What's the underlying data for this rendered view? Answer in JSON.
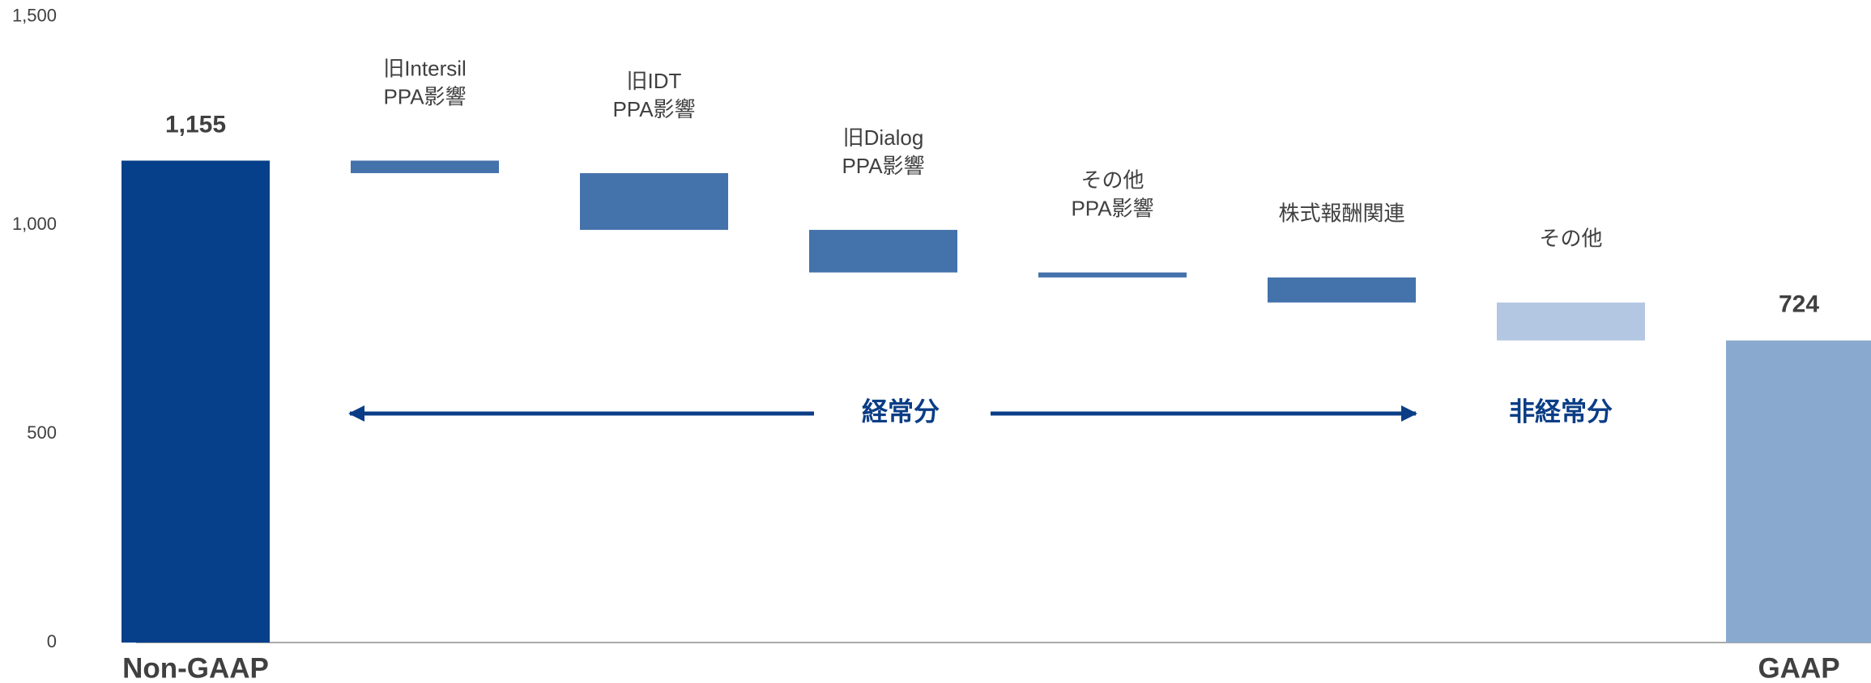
{
  "chart_data": {
    "type": "waterfall",
    "categories": [
      [
        "Non-GAAP"
      ],
      [
        "旧Intersil",
        "PPA影響"
      ],
      [
        "旧IDT",
        "PPA影響"
      ],
      [
        "旧Dialog",
        "PPA影響"
      ],
      [
        "その他",
        "PPA影響"
      ],
      [
        "株式報酬関連"
      ],
      [
        "その他"
      ],
      [
        "GAAP"
      ]
    ],
    "values": [
      1155,
      -30,
      -136,
      -102,
      -12,
      -60,
      -91,
      724
    ],
    "value_labels": [
      "1,155",
      null,
      null,
      null,
      null,
      null,
      null,
      "724"
    ],
    "measure": [
      "total",
      "relative",
      "relative",
      "relative",
      "relative",
      "relative",
      "relative",
      "total"
    ],
    "colors": [
      "#06408a",
      "#4472ab",
      "#4472ab",
      "#4472ab",
      "#4472ab",
      "#4472ab",
      "#b4c7e2",
      "#8aa9cf"
    ],
    "ylim": [
      0,
      1500
    ],
    "yticks": [
      0,
      500,
      {
        "value": 1000,
        "label": "1,000"
      },
      {
        "value": 1500,
        "label": "1,500"
      }
    ],
    "annotations": [
      "経常分",
      "非経常分"
    ]
  }
}
